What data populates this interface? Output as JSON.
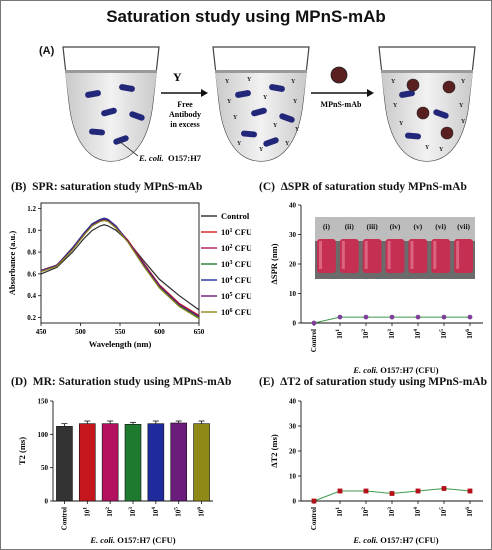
{
  "title": "Saturation study using MPnS-mAb",
  "panel_a": {
    "label": "(A)",
    "arrow1_text": [
      "Free",
      "Antibody",
      "in excess"
    ],
    "arrow2_text": "MPnS-mAb",
    "ecoli_label": "E. coli.",
    "strain_label": "O157:H7"
  },
  "chart_data": [
    {
      "panel": "(B)",
      "type": "line",
      "title": "SPR: saturation study MPnS-mAb",
      "xlabel": "Wavelength (nm)",
      "ylabel": "Absorbance (a.u.)",
      "xlim": [
        450,
        650
      ],
      "ylim": [
        0.15,
        1.25
      ],
      "xticks": [
        "450",
        "500",
        "550",
        "600",
        "650"
      ],
      "yticks": [
        "0.2",
        "0.4",
        "0.6",
        "0.8",
        "1.0",
        "1.2"
      ],
      "x": [
        450,
        470,
        490,
        505,
        515,
        525,
        530,
        535,
        545,
        560,
        580,
        600,
        625,
        650
      ],
      "series": [
        {
          "label": "Control (i)",
          "sup": "",
          "color": "#2b2b2b",
          "values": [
            0.6,
            0.66,
            0.8,
            0.93,
            1.0,
            1.04,
            1.05,
            1.04,
            1.0,
            0.9,
            0.72,
            0.55,
            0.4,
            0.27
          ]
        },
        {
          "label": "10",
          "sup": "1",
          "suffix": " CFU (ii)",
          "color": "#d21f1f",
          "values": [
            0.63,
            0.68,
            0.83,
            0.97,
            1.05,
            1.09,
            1.1,
            1.09,
            1.03,
            0.91,
            0.7,
            0.5,
            0.33,
            0.22
          ]
        },
        {
          "label": "10",
          "sup": "2",
          "suffix": " CFU (iii)",
          "color": "#b0195a",
          "values": [
            0.63,
            0.68,
            0.83,
            0.97,
            1.05,
            1.09,
            1.1,
            1.09,
            1.03,
            0.9,
            0.69,
            0.49,
            0.32,
            0.21
          ]
        },
        {
          "label": "10",
          "sup": "3",
          "suffix": " CFU (iv)",
          "color": "#1e7a2b",
          "values": [
            0.63,
            0.68,
            0.84,
            0.98,
            1.06,
            1.1,
            1.11,
            1.1,
            1.03,
            0.9,
            0.68,
            0.48,
            0.31,
            0.2
          ]
        },
        {
          "label": "10",
          "sup": "4",
          "suffix": " CFU (v)",
          "color": "#1f2e9c",
          "values": [
            0.63,
            0.68,
            0.84,
            0.98,
            1.06,
            1.1,
            1.11,
            1.1,
            1.04,
            0.9,
            0.69,
            0.49,
            0.32,
            0.21
          ]
        },
        {
          "label": "10",
          "sup": "5",
          "suffix": " CFU (vi)",
          "color": "#6a1a78",
          "values": [
            0.63,
            0.68,
            0.83,
            0.97,
            1.05,
            1.09,
            1.1,
            1.09,
            1.03,
            0.9,
            0.69,
            0.49,
            0.32,
            0.21
          ]
        },
        {
          "label": "10",
          "sup": "6",
          "suffix": " CFU (vii)",
          "color": "#8c8a1a",
          "values": [
            0.62,
            0.67,
            0.82,
            0.96,
            1.04,
            1.08,
            1.09,
            1.08,
            1.02,
            0.89,
            0.67,
            0.47,
            0.3,
            0.19
          ]
        }
      ]
    },
    {
      "panel": "(C)",
      "type": "line",
      "title": "ΔSPR of saturation study MPnS-mAb",
      "xlabel_italic": "E. coli.",
      "xlabel_rest": " O157:H7 (CFU)",
      "ylabel": "ΔSPR (nm)",
      "ylim": [
        0,
        40
      ],
      "yticks": [
        "0",
        "10",
        "20",
        "30",
        "40"
      ],
      "categories": [
        "Control",
        "10",
        "10",
        "10",
        "10",
        "10",
        "10"
      ],
      "category_sups": [
        "",
        "1",
        "2",
        "3",
        "4",
        "5",
        "6"
      ],
      "values": [
        0,
        2,
        2,
        2,
        2,
        2,
        2
      ],
      "color": "#7d3f98",
      "line_color": "#3f9a4a",
      "inset_labels": [
        "(i)",
        "(ii)",
        "(iii)",
        "(iv)",
        "(v)",
        "(vi)",
        "(vii)"
      ]
    },
    {
      "panel": "(D)",
      "type": "bar",
      "title": "MR: Saturation study using MPnS-mAb",
      "xlabel_italic": "E. coli.",
      "xlabel_rest": " O157:H7 (CFU)",
      "ylabel": "T2 (ms)",
      "ylim": [
        0,
        150
      ],
      "yticks": [
        "0",
        "50",
        "100",
        "150"
      ],
      "categories": [
        "Control",
        "10",
        "10",
        "10",
        "10",
        "10",
        "10"
      ],
      "category_sups": [
        "",
        "1",
        "2",
        "3",
        "4",
        "5",
        "6"
      ],
      "values": [
        112,
        116,
        116,
        115,
        116,
        117,
        116
      ],
      "errors": [
        4,
        4,
        4,
        3,
        4,
        3,
        4
      ],
      "colors": [
        "#333333",
        "#c4161c",
        "#b3115f",
        "#1d7a2e",
        "#1f2a9c",
        "#6b1d7c",
        "#8f8a17"
      ]
    },
    {
      "panel": "(E)",
      "type": "line",
      "title": "ΔT2 of saturation study using MPnS-mAb",
      "xlabel_italic": "E. coli.",
      "xlabel_rest": " O157:H7 (CFU)",
      "ylabel": "ΔT2 (ms)",
      "ylim": [
        0,
        40
      ],
      "yticks": [
        "0",
        "10",
        "20",
        "30",
        "40"
      ],
      "categories": [
        "Control",
        "10",
        "10",
        "10",
        "10",
        "10",
        "10"
      ],
      "category_sups": [
        "",
        "1",
        "2",
        "3",
        "4",
        "5",
        "6"
      ],
      "values": [
        0,
        4,
        4,
        3,
        4,
        5,
        4
      ],
      "color": "#b3111a",
      "line_color": "#3f9a4a"
    }
  ]
}
